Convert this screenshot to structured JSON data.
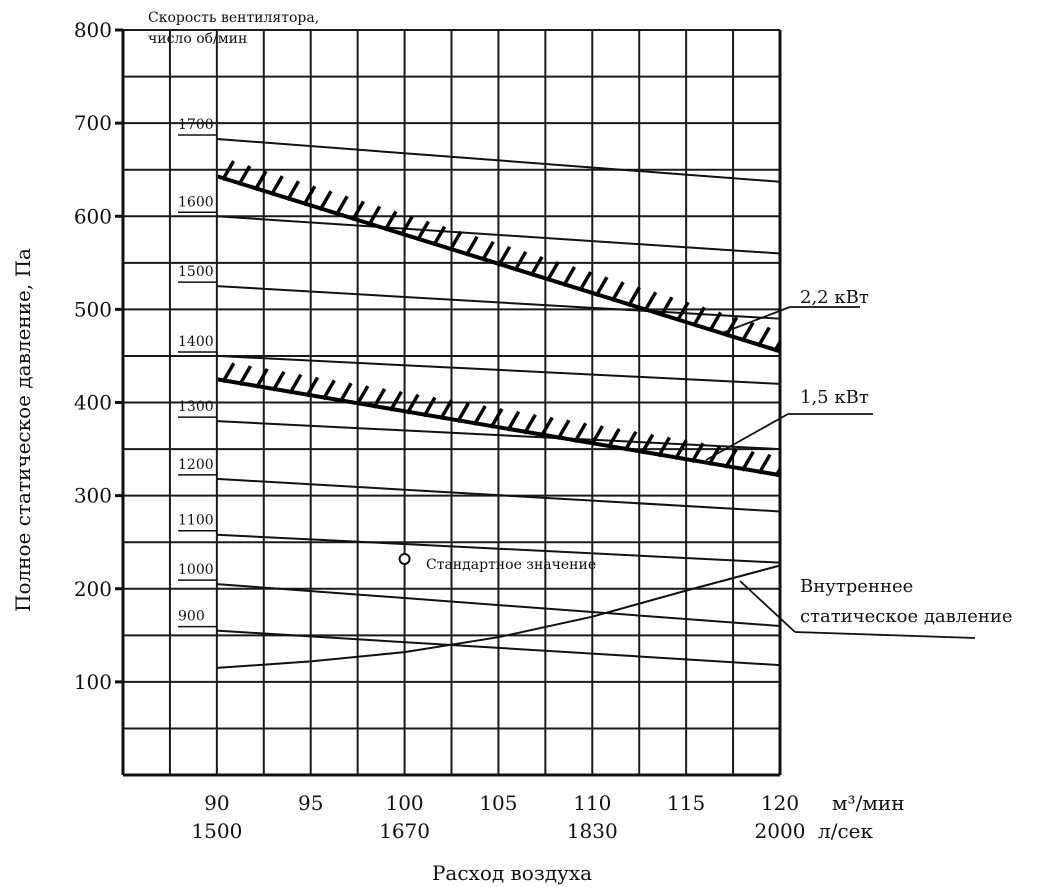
{
  "chart_data": {
    "type": "line",
    "title": "",
    "xlabel": "Расход воздуха",
    "ylabel": "Полное статическое давление, Па",
    "x_unit_primary": "м³/мин",
    "x_unit_secondary": "л/сек",
    "xlim": [
      85,
      120
    ],
    "ylim": [
      0,
      800
    ],
    "x_ticks": [
      "90",
      "95",
      "100",
      "105",
      "110",
      "115",
      "120"
    ],
    "x_ticks_secondary": [
      "1500",
      "1670",
      "1830",
      "2000"
    ],
    "y_ticks": [
      "100",
      "200",
      "300",
      "400",
      "500",
      "600",
      "700",
      "800"
    ],
    "grid": true,
    "speed_label": "Скорость вентилятора, число об/мин",
    "speed_label_line1": "Скорость вентилятора,",
    "speed_label_line2": "число об/мин",
    "speed_curves": [
      {
        "name": "1700",
        "x": [
          90,
          120
        ],
        "y": [
          683,
          637
        ]
      },
      {
        "name": "1600",
        "x": [
          90,
          120
        ],
        "y": [
          600,
          560
        ]
      },
      {
        "name": "1500",
        "x": [
          90,
          120
        ],
        "y": [
          525,
          490
        ]
      },
      {
        "name": "1400",
        "x": [
          90,
          120
        ],
        "y": [
          450,
          420
        ]
      },
      {
        "name": "1300",
        "x": [
          90,
          120
        ],
        "y": [
          380,
          350
        ]
      },
      {
        "name": "1200",
        "x": [
          90,
          120
        ],
        "y": [
          318,
          283
        ]
      },
      {
        "name": "1100",
        "x": [
          90,
          120
        ],
        "y": [
          258,
          228
        ]
      },
      {
        "name": "1000",
        "x": [
          90,
          120
        ],
        "y": [
          205,
          160
        ]
      },
      {
        "name": "900",
        "x": [
          90,
          120
        ],
        "y": [
          155,
          118
        ]
      }
    ],
    "power_limits": [
      {
        "name": "2,2 кВт",
        "x": [
          90,
          120
        ],
        "y": [
          643,
          455
        ]
      },
      {
        "name": "1,5 кВт",
        "x": [
          90,
          120
        ],
        "y": [
          425,
          322
        ]
      }
    ],
    "internal_pressure": {
      "name1": "Внутреннее",
      "name2": "статическое давление",
      "x": [
        90,
        95,
        100,
        105,
        110,
        115,
        120
      ],
      "y": [
        115,
        122,
        132,
        148,
        170,
        198,
        225
      ]
    },
    "standard_point": {
      "label": "Стандартное значение",
      "x": 100,
      "y": 232
    }
  }
}
